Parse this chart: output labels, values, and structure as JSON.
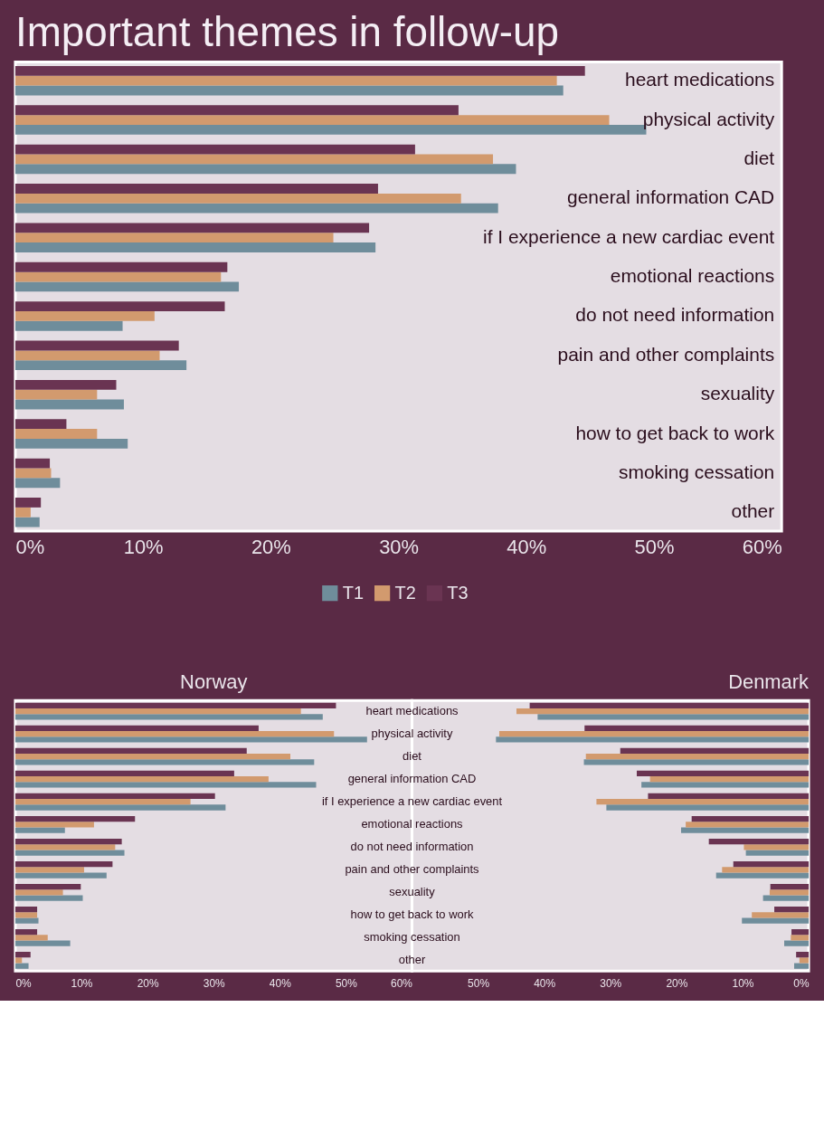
{
  "chart_data": [
    {
      "type": "bar",
      "orientation": "horizontal",
      "title": "Important themes in follow-up",
      "categories": [
        "heart medications",
        "physical activity",
        "diet",
        "general information CAD",
        "if I experience a new cardiac event",
        "emotional reactions",
        "do not need information",
        "pain and other complaints",
        "sexuality",
        "how to get back to work",
        "smoking cessation",
        "other"
      ],
      "series": [
        {
          "name": "T1",
          "color": "#6f8d9b",
          "values": [
            42.9,
            49.4,
            39.2,
            37.8,
            28.2,
            17.5,
            8.4,
            13.4,
            8.5,
            8.8,
            3.5,
            1.9
          ]
        },
        {
          "name": "T2",
          "color": "#d29a6e",
          "values": [
            42.4,
            46.5,
            37.4,
            34.9,
            24.9,
            16.1,
            10.9,
            11.3,
            6.4,
            6.4,
            2.8,
            1.2
          ]
        },
        {
          "name": "T3",
          "color": "#6a3452",
          "values": [
            44.6,
            34.7,
            31.3,
            28.4,
            27.7,
            16.6,
            16.4,
            12.8,
            7.9,
            4.0,
            2.7,
            2.0
          ]
        }
      ],
      "xlim": [
        0,
        60
      ],
      "xticks": [
        {
          "value": 0,
          "label": "0%"
        },
        {
          "value": 10,
          "label": "10%"
        },
        {
          "value": 20,
          "label": "20%"
        },
        {
          "value": 30,
          "label": "30%"
        },
        {
          "value": 40,
          "label": "40%"
        },
        {
          "value": 50,
          "label": "50%"
        },
        {
          "value": 60,
          "label": "60%"
        }
      ],
      "legend": "bottom"
    },
    {
      "type": "bar",
      "orientation": "horizontal",
      "title": "Norway",
      "tick_labels": "x",
      "categories": [
        "heart medications",
        "physical activity",
        "diet",
        "general information CAD",
        "if I experience a new cardiac event",
        "emotional reactions",
        "do not need information",
        "pain and other complaints",
        "sexuality",
        "how to get back to work",
        "smoking cessation",
        "other"
      ],
      "series": [
        {
          "name": "T1",
          "color": "#6f8d9b",
          "values": [
            46.5,
            53.2,
            45.2,
            45.5,
            31.8,
            7.5,
            16.5,
            13.8,
            10.2,
            3.5,
            8.3,
            2.0
          ]
        },
        {
          "name": "T2",
          "color": "#d29a6e",
          "values": [
            43.2,
            48.2,
            41.6,
            38.3,
            26.5,
            11.9,
            15.1,
            10.4,
            7.2,
            3.3,
            4.9,
            1.0
          ]
        },
        {
          "name": "T3",
          "color": "#6a3452",
          "values": [
            48.5,
            36.8,
            35.0,
            33.1,
            30.2,
            18.1,
            16.1,
            14.7,
            9.9,
            3.3,
            3.3,
            2.3
          ]
        }
      ],
      "xlim": [
        0,
        60
      ],
      "xticks": [
        {
          "value": 0,
          "label": "0%"
        },
        {
          "value": 10,
          "label": "10%"
        },
        {
          "value": 20,
          "label": "20%"
        },
        {
          "value": 30,
          "label": "30%"
        },
        {
          "value": 40,
          "label": "40%"
        },
        {
          "value": 50,
          "label": "50%"
        },
        {
          "value": 60,
          "label": "60%"
        }
      ]
    },
    {
      "type": "bar",
      "orientation": "horizontal",
      "title": "Denmark",
      "categories": [
        "heart medications",
        "physical activity",
        "diet",
        "general information CAD",
        "if I experience a new cardiac event",
        "emotional reactions",
        "do not need information",
        "pain and other complaints",
        "sexuality",
        "how to get back to work",
        "smoking cessation",
        "other"
      ],
      "series": [
        {
          "name": "T1",
          "color": "#6f8d9b",
          "values": [
            41.0,
            47.3,
            34.0,
            25.3,
            30.6,
            19.3,
            9.5,
            14.0,
            6.9,
            10.1,
            3.7,
            2.2
          ]
        },
        {
          "name": "T2",
          "color": "#d29a6e",
          "values": [
            44.2,
            46.8,
            33.7,
            24.0,
            32.1,
            18.6,
            9.8,
            13.1,
            5.9,
            8.6,
            2.7,
            1.4
          ]
        },
        {
          "name": "T3",
          "color": "#6a3452",
          "values": [
            42.2,
            33.9,
            28.5,
            26.0,
            24.3,
            17.7,
            15.1,
            11.4,
            5.8,
            5.2,
            2.6,
            1.9
          ]
        }
      ],
      "xlim": [
        60,
        0
      ],
      "xticks": [
        {
          "value": 0,
          "label": "0%"
        },
        {
          "value": 10,
          "label": "10%"
        },
        {
          "value": 20,
          "label": "20%"
        },
        {
          "value": 30,
          "label": "30%"
        },
        {
          "value": 40,
          "label": "40%"
        },
        {
          "value": 50,
          "label": "50%"
        }
      ]
    }
  ]
}
